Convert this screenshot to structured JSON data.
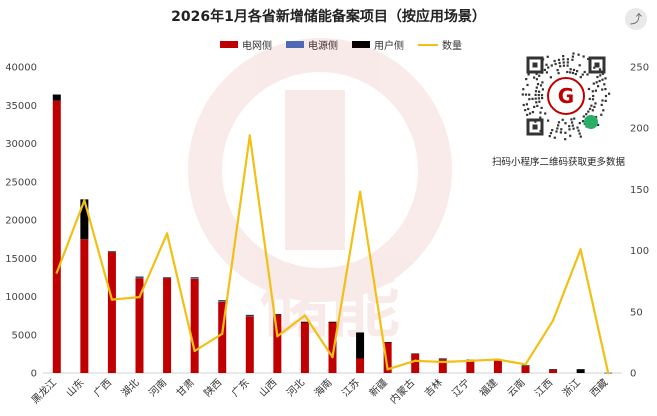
{
  "title": "2026年1月各省新增储能备案项目（按应用场景）",
  "qr_caption": "扫码小程序二维码获取更多数据",
  "legend": {
    "grid": "电网侧",
    "source": "电源侧",
    "user": "用户侧",
    "count": "数量"
  },
  "watermark_text": "储能",
  "colors": {
    "grid": "#c00000",
    "source": "#4472c4",
    "user": "#000000",
    "count": "#f2c014"
  },
  "chart_data": {
    "type": "bar",
    "title": "2026年1月各省新增储能备案项目（按应用场景）",
    "categories": [
      "黑龙江",
      "山东",
      "广西",
      "湖北",
      "河南",
      "甘肃",
      "陕西",
      "广东",
      "山西",
      "河北",
      "海南",
      "江苏",
      "新疆",
      "内蒙古",
      "吉林",
      "辽宁",
      "福建",
      "云南",
      "江西",
      "浙江",
      "西藏"
    ],
    "series": [
      {
        "name": "电网侧",
        "axis": "left",
        "kind": "stacked-bar",
        "values": [
          35600,
          17500,
          15800,
          12400,
          12400,
          12300,
          9300,
          7400,
          7600,
          6600,
          6600,
          1900,
          4000,
          2500,
          1800,
          1700,
          1600,
          900,
          400,
          0,
          0
        ]
      },
      {
        "name": "电源侧",
        "axis": "left",
        "kind": "stacked-bar",
        "values": [
          0,
          0,
          0,
          100,
          0,
          100,
          100,
          100,
          0,
          0,
          0,
          0,
          0,
          0,
          0,
          0,
          0,
          0,
          0,
          0,
          0
        ]
      },
      {
        "name": "用户侧",
        "axis": "left",
        "kind": "stacked-bar",
        "values": [
          800,
          5200,
          100,
          100,
          100,
          100,
          100,
          100,
          100,
          100,
          100,
          3400,
          50,
          50,
          100,
          50,
          100,
          100,
          100,
          500,
          20
        ]
      },
      {
        "name": "数量",
        "axis": "right",
        "kind": "line",
        "values": [
          82,
          141,
          60,
          62,
          114,
          18,
          32,
          194,
          30,
          47,
          13,
          148,
          3,
          10,
          9,
          10,
          11,
          7,
          43,
          101,
          0
        ]
      }
    ],
    "y_left": {
      "min": 0,
      "max": 40000,
      "ticks": [
        0,
        5000,
        10000,
        15000,
        20000,
        25000,
        30000,
        35000,
        40000
      ]
    },
    "y_right": {
      "min": 0,
      "max": 250,
      "ticks": [
        0,
        50,
        100,
        150,
        200,
        250
      ]
    },
    "grid": false,
    "legend_position": "top"
  }
}
